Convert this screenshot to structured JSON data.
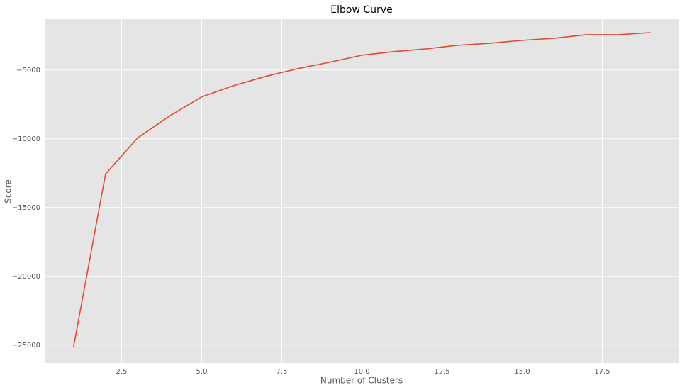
{
  "chart_data": {
    "type": "line",
    "title": "Elbow Curve",
    "xlabel": "Number of Clusters",
    "ylabel": "Score",
    "x": [
      1,
      2,
      3,
      4,
      5,
      6,
      7,
      8,
      9,
      10,
      11,
      12,
      13,
      14,
      15,
      16,
      17,
      18,
      19
    ],
    "series": [
      {
        "color": "#e24a33",
        "values": [
          -25150,
          -12560,
          -9935,
          -8340,
          -6950,
          -6130,
          -5460,
          -4900,
          -4430,
          -3920,
          -3660,
          -3460,
          -3200,
          -3050,
          -2840,
          -2690,
          -2430,
          -2430,
          -2280
        ]
      }
    ],
    "xlim": [
      0.1,
      19.9
    ],
    "ylim": [
      -26300,
      -1300
    ],
    "xticks": [
      {
        "value": 2.5,
        "label": "2.5"
      },
      {
        "value": 5,
        "label": "5.0"
      },
      {
        "value": 7.5,
        "label": "7.5"
      },
      {
        "value": 10,
        "label": "10.0"
      },
      {
        "value": 12.5,
        "label": "12.5"
      },
      {
        "value": 15,
        "label": "15.0"
      },
      {
        "value": 17.5,
        "label": "17.5"
      }
    ],
    "yticks": [
      {
        "value": -25000,
        "label": "−25000"
      },
      {
        "value": -20000,
        "label": "−20000"
      },
      {
        "value": -15000,
        "label": "−15000"
      },
      {
        "value": -10000,
        "label": "−10000"
      },
      {
        "value": -5000,
        "label": "−5000"
      }
    ],
    "grid": true
  }
}
